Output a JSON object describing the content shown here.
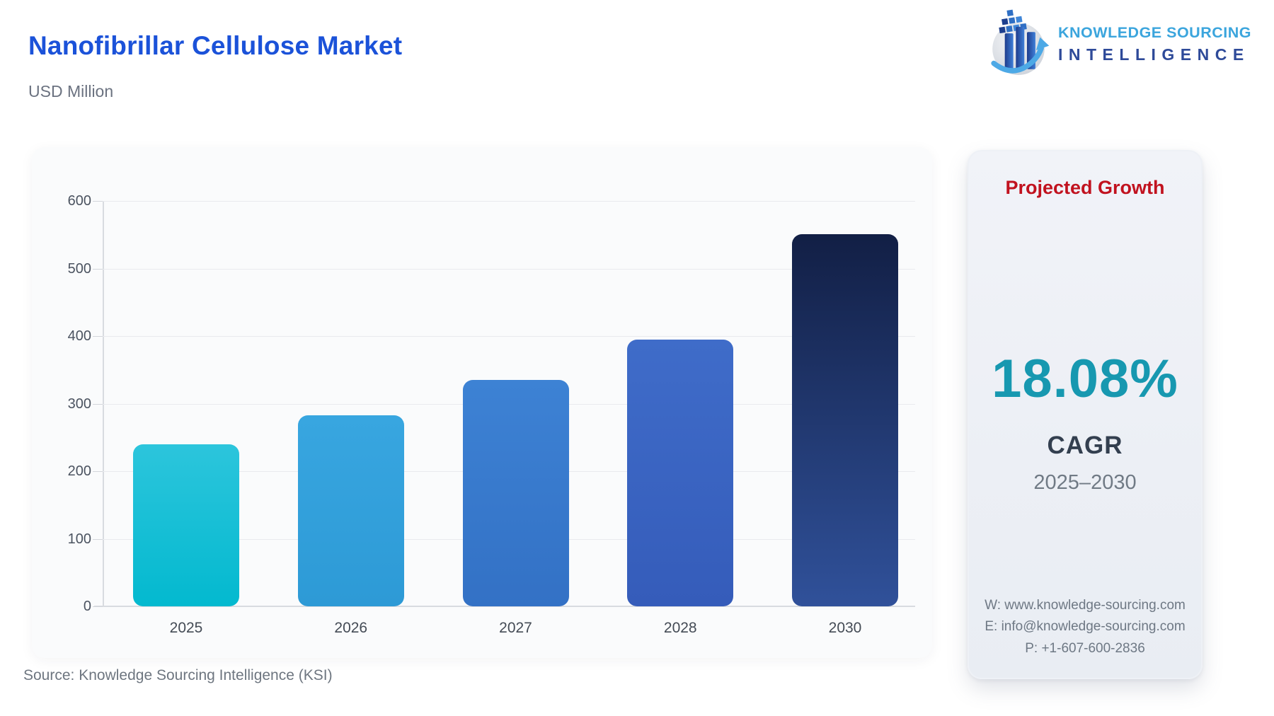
{
  "header": {
    "title": "Nanofibrillar Cellulose Market",
    "subtitle": "USD Million",
    "logo": {
      "line1": "KNOWLEDGE SOURCING",
      "line2": "INTELLIGENCE"
    }
  },
  "colors": {
    "title_blue": "#1b52d9",
    "heading_red": "#c1121f",
    "value_teal": "#1798b0",
    "logo_light_blue": "#3ba5dd",
    "logo_dark_blue": "#2e4a99"
  },
  "chart_data": {
    "type": "bar",
    "title": "Nanofibrillar Cellulose Market",
    "xlabel": "",
    "ylabel": "USD Million",
    "categories": [
      "2025",
      "2026",
      "2027",
      "2028",
      "2030"
    ],
    "values": [
      240,
      283,
      335,
      395,
      551
    ],
    "ylim": [
      0,
      600
    ],
    "yticks": [
      0,
      100,
      200,
      300,
      400,
      500,
      600
    ],
    "grid": true,
    "legend": "none",
    "bar_colors": [
      {
        "top": "#2cc5dc",
        "bottom": "#03b9cf"
      },
      {
        "top": "#38a6e0",
        "bottom": "#2d9ad6"
      },
      {
        "top": "#3d82d4",
        "bottom": "#3371c5"
      },
      {
        "top": "#3f6cc9",
        "bottom": "#355cba"
      },
      {
        "top": "#121f45",
        "bottom": "#30519a"
      }
    ]
  },
  "growth_panel": {
    "heading": "Projected Growth",
    "value": "18.08%",
    "label": "CAGR",
    "period": "2025–2030",
    "contact": {
      "website": "W: www.knowledge-sourcing.com",
      "email": "E: info@knowledge-sourcing.com",
      "phone": "P: +1-607-600-2836"
    }
  },
  "footer": {
    "source": "Source: Knowledge Sourcing Intelligence (KSI)"
  }
}
